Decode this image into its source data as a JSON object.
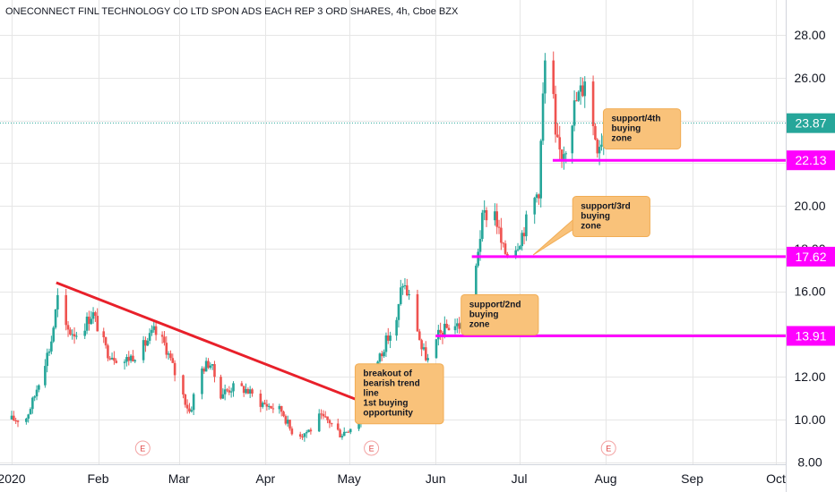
{
  "chart_data": {
    "type": "candlestick",
    "title": "ONECONNECT FINL TECHNOLOGY CO LTD SPON ADS EACH REP 3 ORD SHARES, 4h, Cboe BZX",
    "x_axis": {
      "start": "2020-01-01",
      "end": "2020-10-01",
      "tick_labels": [
        "2020",
        "Feb",
        "Mar",
        "Apr",
        "May",
        "Jun",
        "Jul",
        "Aug",
        "Sep",
        "Oct"
      ],
      "tick_dates": [
        "2020-01-01",
        "2020-02-01",
        "2020-03-01",
        "2020-04-01",
        "2020-05-01",
        "2020-06-01",
        "2020-07-01",
        "2020-08-01",
        "2020-09-01",
        "2020-10-01"
      ]
    },
    "y_axis": {
      "ylim": [
        7.9,
        29.3
      ],
      "ticks": [
        "28.00",
        "26.00",
        "24.00",
        "22.00",
        "20.00",
        "18.00",
        "16.00",
        "14.00",
        "12.00",
        "10.00",
        "8.00"
      ],
      "position": "right"
    },
    "grid": true,
    "up_color": "#26a69a",
    "down_color": "#ef5350",
    "price_anchors": [
      [
        "2020-01-01",
        10.0
      ],
      [
        "2020-01-06",
        10.0
      ],
      [
        "2020-01-09",
        11.0
      ],
      [
        "2020-01-12",
        12.4
      ],
      [
        "2020-01-15",
        13.5
      ],
      [
        "2020-01-18",
        16.1
      ],
      [
        "2020-01-20",
        14.2
      ],
      [
        "2020-01-25",
        14.0
      ],
      [
        "2020-01-30",
        15.0
      ],
      [
        "2020-02-04",
        13.2
      ],
      [
        "2020-02-10",
        12.7
      ],
      [
        "2020-02-16",
        13.2
      ],
      [
        "2020-02-21",
        14.1
      ],
      [
        "2020-02-25",
        13.5
      ],
      [
        "2020-03-01",
        11.6
      ],
      [
        "2020-03-05",
        10.3
      ],
      [
        "2020-03-08",
        12.2
      ],
      [
        "2020-03-12",
        12.7
      ],
      [
        "2020-03-16",
        11.2
      ],
      [
        "2020-03-20",
        11.5
      ],
      [
        "2020-03-25",
        11.4
      ],
      [
        "2020-03-30",
        10.8
      ],
      [
        "2020-04-03",
        10.6
      ],
      [
        "2020-04-07",
        10.4
      ],
      [
        "2020-04-10",
        9.5
      ],
      [
        "2020-04-14",
        9.3
      ],
      [
        "2020-04-18",
        9.6
      ],
      [
        "2020-04-20",
        10.1
      ],
      [
        "2020-04-24",
        9.9
      ],
      [
        "2020-04-28",
        9.3
      ],
      [
        "2020-05-02",
        9.7
      ],
      [
        "2020-05-06",
        10.0
      ],
      [
        "2020-05-08",
        10.3
      ],
      [
        "2020-05-10",
        12.4
      ],
      [
        "2020-05-14",
        13.6
      ],
      [
        "2020-05-18",
        14.5
      ],
      [
        "2020-05-20",
        16.5
      ],
      [
        "2020-05-24",
        15.2
      ],
      [
        "2020-05-27",
        13.3
      ],
      [
        "2020-05-30",
        12.6
      ],
      [
        "2020-06-02",
        13.9
      ],
      [
        "2020-06-06",
        14.4
      ],
      [
        "2020-06-10",
        14.4
      ],
      [
        "2020-06-14",
        15.0
      ],
      [
        "2020-06-16",
        17.8
      ],
      [
        "2020-06-18",
        19.5
      ],
      [
        "2020-06-22",
        19.9
      ],
      [
        "2020-06-25",
        17.9
      ],
      [
        "2020-06-28",
        17.7
      ],
      [
        "2020-07-02",
        18.7
      ],
      [
        "2020-07-05",
        19.8
      ],
      [
        "2020-07-08",
        20.8
      ],
      [
        "2020-07-10",
        26.5
      ],
      [
        "2020-07-12",
        27.9
      ],
      [
        "2020-07-14",
        23.0
      ],
      [
        "2020-07-16",
        22.4
      ],
      [
        "2020-07-18",
        23.0
      ],
      [
        "2020-07-21",
        24.8
      ],
      [
        "2020-07-24",
        25.6
      ],
      [
        "2020-07-25",
        26.6
      ],
      [
        "2020-07-27",
        24.0
      ],
      [
        "2020-07-29",
        22.9
      ],
      [
        "2020-07-31",
        23.3
      ],
      [
        "2020-08-01",
        23.87
      ]
    ],
    "last_price": "23.87",
    "trend_line": {
      "from": [
        "2020-01-17",
        16.4
      ],
      "to": [
        "2020-05-18",
        10.2
      ],
      "color": "#e8202a"
    },
    "support_levels": [
      {
        "label": "22.13",
        "value": 22.13,
        "from": "2020-07-13"
      },
      {
        "label": "17.62",
        "value": 17.62,
        "from": "2020-06-14"
      },
      {
        "label": "13.91",
        "value": 13.91,
        "from": "2020-06-01"
      }
    ],
    "annotations": [
      {
        "lines": [
          "support/4th",
          "buying",
          "zone"
        ],
        "anchor": [
          "2020-08-14",
          23.6
        ],
        "pointer": [
          "2020-08-02",
          22.9
        ]
      },
      {
        "lines": [
          "support/3rd",
          "buying",
          "zone"
        ],
        "anchor": [
          "2020-08-03",
          19.5
        ],
        "pointer": [
          "2020-07-06",
          17.7
        ]
      },
      {
        "lines": [
          "support/2nd",
          "buying",
          "zone"
        ],
        "anchor": [
          "2020-06-24",
          14.9
        ],
        "pointer": [
          "2020-06-17",
          14.0
        ]
      },
      {
        "lines": [
          "breakout of",
          "bearish trend",
          "line",
          "1st buying",
          "opportunity"
        ],
        "anchor": [
          "2020-05-19",
          11.2
        ],
        "pointer": [
          "2020-05-09",
          10.9
        ]
      }
    ],
    "earnings_markers": [
      "2020-02-17",
      "2020-05-09",
      "2020-08-02"
    ],
    "earnings_label": "E"
  },
  "colors": {
    "support_line": "#ff00ff",
    "price_tag": "#26a69a",
    "note_fill": "#f9c27a",
    "note_stroke": "#f1ad55",
    "grid": "#e6e6e6"
  }
}
